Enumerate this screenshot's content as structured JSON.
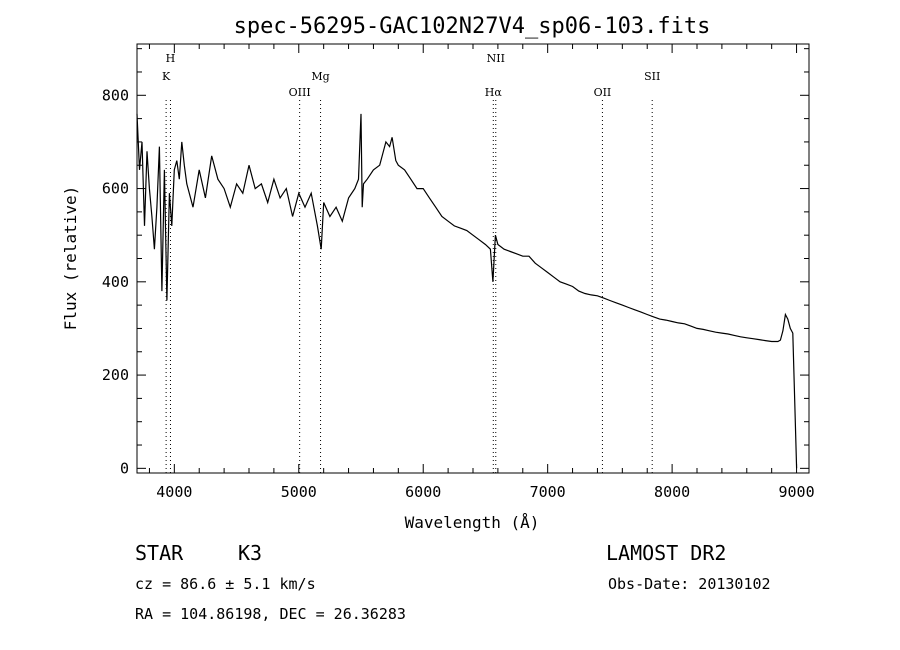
{
  "chart_data": {
    "type": "line",
    "title": "spec-56295-GAC102N27V4_sp06-103.fits",
    "xlabel": "Wavelength (Å)",
    "ylabel": "Flux (relative)",
    "xlim": [
      3700,
      9100
    ],
    "ylim": [
      -10,
      910
    ],
    "xticks": [
      4000,
      5000,
      6000,
      7000,
      8000,
      9000
    ],
    "yticks": [
      0,
      200,
      400,
      600,
      800
    ],
    "grid": false,
    "series": [
      {
        "x": [
          3700,
          3720,
          3740,
          3760,
          3780,
          3800,
          3820,
          3840,
          3860,
          3880,
          3900,
          3920,
          3940,
          3960,
          3980,
          4000,
          4020,
          4040,
          4060,
          4080,
          4100,
          4150,
          4200,
          4250,
          4300,
          4350,
          4400,
          4450,
          4500,
          4550,
          4600,
          4650,
          4700,
          4750,
          4800,
          4850,
          4900,
          4950,
          5000,
          5050,
          5100,
          5150,
          5180,
          5200,
          5250,
          5300,
          5350,
          5400,
          5450,
          5480,
          5500,
          5510,
          5520,
          5550,
          5600,
          5650,
          5700,
          5730,
          5750,
          5780,
          5800,
          5850,
          5900,
          5950,
          6000,
          6050,
          6100,
          6150,
          6200,
          6250,
          6300,
          6350,
          6400,
          6450,
          6500,
          6540,
          6560,
          6580,
          6600,
          6650,
          6700,
          6750,
          6800,
          6850,
          6900,
          6950,
          7000,
          7050,
          7100,
          7150,
          7200,
          7250,
          7300,
          7350,
          7400,
          7450,
          7500,
          7550,
          7600,
          7650,
          7700,
          7750,
          7800,
          7850,
          7900,
          7950,
          8000,
          8050,
          8100,
          8150,
          8200,
          8250,
          8300,
          8350,
          8400,
          8450,
          8500,
          8550,
          8600,
          8650,
          8700,
          8750,
          8800,
          8850,
          8870,
          8890,
          8910,
          8930,
          8950,
          8970,
          8990,
          9000
        ],
        "y": [
          760,
          640,
          700,
          520,
          680,
          600,
          540,
          470,
          560,
          690,
          380,
          640,
          360,
          590,
          520,
          640,
          660,
          620,
          700,
          650,
          610,
          560,
          640,
          580,
          670,
          620,
          600,
          560,
          610,
          590,
          650,
          600,
          610,
          570,
          620,
          580,
          600,
          540,
          590,
          560,
          590,
          520,
          470,
          570,
          540,
          560,
          530,
          580,
          600,
          620,
          760,
          560,
          610,
          620,
          640,
          650,
          700,
          690,
          710,
          660,
          650,
          640,
          620,
          600,
          600,
          580,
          560,
          540,
          530,
          520,
          515,
          510,
          500,
          490,
          480,
          470,
          400,
          500,
          480,
          470,
          465,
          460,
          455,
          455,
          440,
          430,
          420,
          410,
          400,
          395,
          390,
          380,
          375,
          372,
          370,
          365,
          360,
          355,
          350,
          345,
          340,
          335,
          330,
          325,
          320,
          318,
          315,
          312,
          310,
          305,
          300,
          298,
          295,
          292,
          290,
          288,
          285,
          282,
          280,
          278,
          276,
          274,
          272,
          272,
          275,
          295,
          330,
          320,
          300,
          290,
          100,
          0
        ]
      }
    ],
    "line_markers": [
      {
        "x": 3934,
        "label": "K",
        "row": 2
      },
      {
        "x": 3969,
        "label": "H",
        "row": 1
      },
      {
        "x": 5007,
        "label": "OIII",
        "row": 3
      },
      {
        "x": 5175,
        "label": "Mg",
        "row": 2
      },
      {
        "x": 6563,
        "label": "Hα",
        "row": 3
      },
      {
        "x": 6583,
        "label": "NII",
        "row": 1
      },
      {
        "x": 7440,
        "label": "OII",
        "row": 3
      },
      {
        "x": 7840,
        "label": "SII",
        "row": 2
      }
    ]
  },
  "info": {
    "object_class": "STAR",
    "subclass": "K3",
    "survey": "LAMOST DR2",
    "cz": "cz = 86.6 ± 5.1 km/s",
    "obs_date": "Obs-Date: 20130102",
    "coords": "RA = 104.86198, DEC =  26.36283"
  }
}
